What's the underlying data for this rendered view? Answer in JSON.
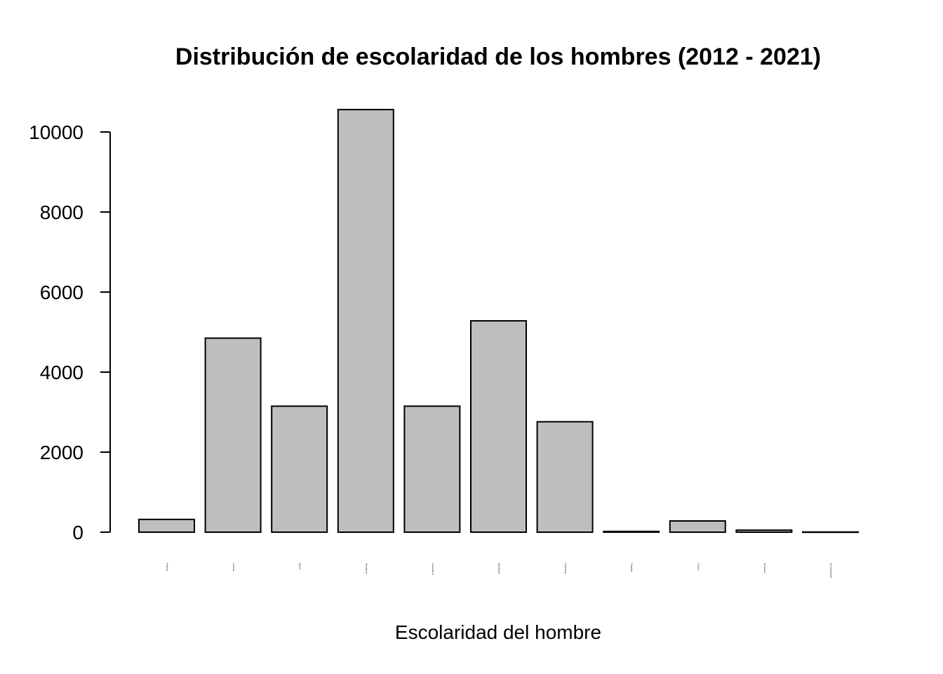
{
  "chart_data": {
    "type": "bar",
    "title": "Distribución de escolaridad de los hombres (2012 - 2021)",
    "xlabel": "Escolaridad del hombre",
    "ylabel": "",
    "ylim": [
      0,
      10600
    ],
    "yticks": [
      0,
      2000,
      4000,
      6000,
      8000,
      10000
    ],
    "grid": false,
    "legend": "none",
    "bar_color": "#bebebe",
    "border_color": "#000000",
    "categories": [
      "Ninguna",
      "Primaria",
      "Básica",
      "Secundaria",
      "Preparatoria",
      "Bachillerato",
      "Profesional",
      "Posgrado",
      "Técnica",
      "Normalista",
      "No especificado"
    ],
    "values": [
      320,
      4850,
      3150,
      10560,
      3150,
      5280,
      2760,
      20,
      280,
      50,
      5
    ]
  }
}
